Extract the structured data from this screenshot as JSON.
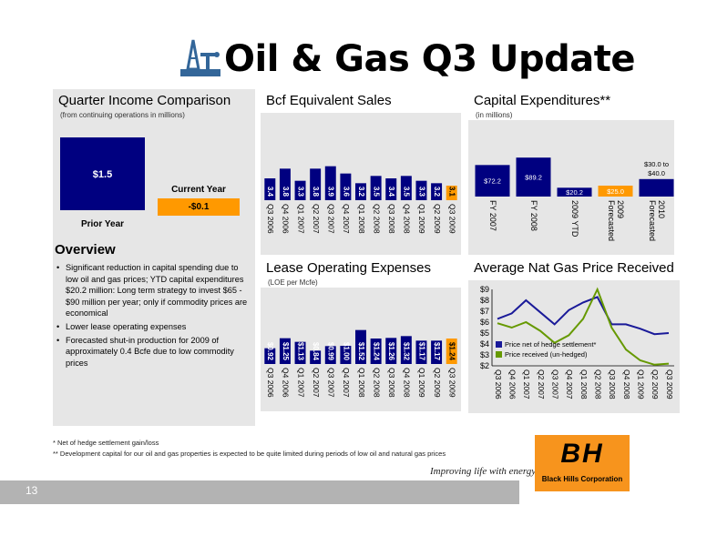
{
  "title": "Oil & Gas Q3 Update",
  "quarter_income": {
    "title": "Quarter Income Comparison",
    "subtitle": "(from continuing operations in millions)",
    "prior_label": "Prior Year",
    "prior_value": "$1.5",
    "current_label": "Current Year",
    "current_value": "-$0.1"
  },
  "overview": {
    "title": "Overview",
    "bullets": [
      "Significant reduction in capital spending due to low oil and gas prices; YTD capital expenditures $20.2 million: Long term strategy to invest $65 - $90 million per year; only if commodity prices are economical",
      "Lower lease operating expenses",
      "Forecasted shut-in production for 2009 of approximately 0.4 Bcfe due to low commodity prices"
    ]
  },
  "footnotes": {
    "note1": "* Net of hedge settlement gain/loss",
    "note2": "** Development capital for our oil and gas properties is expected to be quite limited during periods of low oil and natural gas prices"
  },
  "brand": {
    "tagline": "Improving life with energy",
    "company": "Black Hills Corporation",
    "logo_letters": "BH",
    "page_number": "13"
  },
  "colors": {
    "navy": "#000080",
    "orange": "#FF9900",
    "panel_bg": "#E6E6E6",
    "line_blue": "#1A1A99",
    "line_green": "#669900",
    "bottom_bar": "#B3B3B3"
  },
  "chart_data": [
    {
      "id": "bcf",
      "type": "bar",
      "title": "Bcf Equivalent Sales",
      "categories": [
        "Q3 2006",
        "Q4 2006",
        "Q1 2007",
        "Q2 2007",
        "Q3 2007",
        "Q4 2007",
        "Q1 2008",
        "Q2 2008",
        "Q3 2008",
        "Q4 2008",
        "Q1 2009",
        "Q2 2009",
        "Q3 2009"
      ],
      "values": [
        3.4,
        3.8,
        3.3,
        3.8,
        3.9,
        3.6,
        3.2,
        3.5,
        3.4,
        3.5,
        3.3,
        3.2,
        3.1
      ],
      "labels": [
        "3.4",
        "3.8",
        "3.3",
        "3.8",
        "3.9",
        "3.6",
        "3.2",
        "3.5",
        "3.4",
        "3.5",
        "3.3",
        "3.2",
        "3.1"
      ],
      "highlight_last": true
    },
    {
      "id": "capex",
      "type": "bar",
      "title": "Capital Expenditures**",
      "subtitle": "(in millions)",
      "categories": [
        "FY 2007",
        "FY 2008",
        "2009 YTD",
        "Forecasted 2009",
        "Forecasted 2010"
      ],
      "values": [
        72.2,
        89.2,
        20.2,
        25.0,
        40.0
      ],
      "labels": [
        "$72.2",
        "$89.2",
        "$20.2",
        "$25.0",
        "$40.0"
      ],
      "extra_label": "$30.0 to",
      "highlight_index": 3
    },
    {
      "id": "loe",
      "type": "bar",
      "title": "Lease Operating Expenses",
      "subtitle": "(LOE per Mcfe)",
      "categories": [
        "Q3 2006",
        "Q4 2006",
        "Q1 2007",
        "Q2 2007",
        "Q3 2007",
        "Q4 2007",
        "Q1 2008",
        "Q2 2008",
        "Q3 2008",
        "Q4 2008",
        "Q1 2009",
        "Q2 2009",
        "Q3 2009"
      ],
      "values": [
        0.92,
        1.25,
        1.13,
        0.84,
        0.99,
        1.0,
        1.52,
        1.24,
        1.26,
        1.32,
        1.17,
        1.17,
        1.24
      ],
      "labels": [
        "$0.92",
        "$1.25",
        "$1.13",
        "$0.84",
        "$0.99",
        "$1.00",
        "$1.52",
        "$1.24",
        "$1.26",
        "$1.32",
        "$1.17",
        "$1.17",
        "$1.24"
      ],
      "highlight_last": true
    },
    {
      "id": "gas",
      "type": "line",
      "title": "Average Nat Gas Price Received",
      "categories": [
        "Q3 2006",
        "Q4 2006",
        "Q1 2007",
        "Q2 2007",
        "Q3 2007",
        "Q4 2007",
        "Q1 2008",
        "Q2 2008",
        "Q3 2008",
        "Q4 2008",
        "Q1 2009",
        "Q2 2009",
        "Q3 2009"
      ],
      "y_ticks": [
        "$2",
        "$3",
        "$4",
        "$5",
        "$6",
        "$7",
        "$8",
        "$9"
      ],
      "ylim": [
        2,
        9
      ],
      "series": [
        {
          "name": "Price net of hedge settlement*",
          "values": [
            6.3,
            6.8,
            8.0,
            6.9,
            5.8,
            7.1,
            7.8,
            8.3,
            5.8,
            5.8,
            5.4,
            4.9,
            5.0
          ]
        },
        {
          "name": "Price received (un-hedged)",
          "values": [
            5.9,
            5.5,
            6.0,
            5.2,
            4.1,
            4.8,
            6.3,
            9.0,
            5.5,
            3.5,
            2.5,
            2.1,
            2.2
          ]
        }
      ]
    }
  ]
}
